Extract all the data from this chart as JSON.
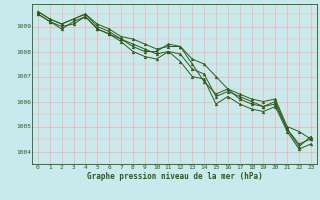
{
  "title": "Graphe pression niveau de la mer (hPa)",
  "bg_color": "#c8eaec",
  "grid_color": "#ffaaaa",
  "line_color": "#2d5a1b",
  "marker": "^",
  "xlim": [
    -0.5,
    23.5
  ],
  "ylim": [
    1003.5,
    1009.9
  ],
  "yticks": [
    1004,
    1005,
    1006,
    1007,
    1008,
    1009
  ],
  "xticks": [
    0,
    1,
    2,
    3,
    4,
    5,
    6,
    7,
    8,
    9,
    10,
    11,
    12,
    13,
    14,
    15,
    16,
    17,
    18,
    19,
    20,
    21,
    22,
    23
  ],
  "series": [
    [
      1009.6,
      1009.3,
      1009.1,
      1009.3,
      1009.5,
      1009.1,
      1008.9,
      1008.6,
      1008.5,
      1008.3,
      1008.1,
      1008.2,
      1008.2,
      1007.7,
      1007.5,
      1007.0,
      1006.5,
      1006.3,
      1006.1,
      1006.0,
      1006.1,
      1005.0,
      1004.8,
      1004.5
    ],
    [
      1009.5,
      1009.2,
      1009.0,
      1009.1,
      1009.4,
      1008.9,
      1008.7,
      1008.5,
      1008.3,
      1008.1,
      1007.9,
      1008.0,
      1007.9,
      1007.3,
      1007.1,
      1006.2,
      1006.4,
      1006.2,
      1006.0,
      1005.8,
      1005.9,
      1004.9,
      1004.3,
      1004.5
    ],
    [
      1009.6,
      1009.3,
      1009.1,
      1009.3,
      1009.5,
      1009.0,
      1008.8,
      1008.5,
      1008.2,
      1008.0,
      1008.0,
      1008.3,
      1008.2,
      1007.5,
      1006.8,
      1006.3,
      1006.5,
      1006.1,
      1005.9,
      1005.8,
      1006.0,
      1004.9,
      1004.2,
      1004.6
    ],
    [
      1009.5,
      1009.2,
      1008.9,
      1009.2,
      1009.4,
      1008.9,
      1008.7,
      1008.4,
      1008.0,
      1007.8,
      1007.7,
      1008.0,
      1007.6,
      1007.0,
      1006.9,
      1005.9,
      1006.2,
      1005.9,
      1005.7,
      1005.6,
      1005.8,
      1004.8,
      1004.1,
      1004.3
    ]
  ]
}
